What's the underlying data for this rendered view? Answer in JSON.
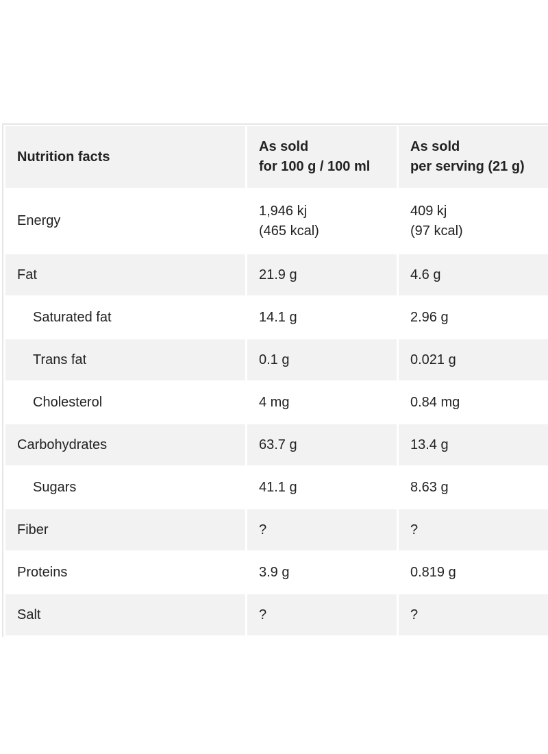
{
  "table": {
    "header": [
      "Nutrition facts",
      [
        "As sold",
        "for 100 g / 100 ml"
      ],
      [
        "As sold",
        "per serving (21 g)"
      ]
    ],
    "rows": [
      [
        "Energy",
        [
          "1,946 kj",
          "(465 kcal)"
        ],
        [
          "409 kj",
          "(97 kcal)"
        ]
      ],
      [
        "Fat",
        "21.9 g",
        "4.6 g"
      ],
      [
        "Saturated fat",
        "14.1 g",
        "2.96 g"
      ],
      [
        "Trans fat",
        "0.1 g",
        "0.021 g"
      ],
      [
        "Cholesterol",
        "4 mg",
        "0.84 mg"
      ],
      [
        "Carbohydrates",
        "63.7 g",
        "13.4 g"
      ],
      [
        "Sugars",
        "41.1 g",
        "8.63 g"
      ],
      [
        "Fiber",
        "?",
        "?"
      ],
      [
        "Proteins",
        "3.9 g",
        "0.819 g"
      ],
      [
        "Salt",
        "?",
        "?"
      ]
    ]
  }
}
